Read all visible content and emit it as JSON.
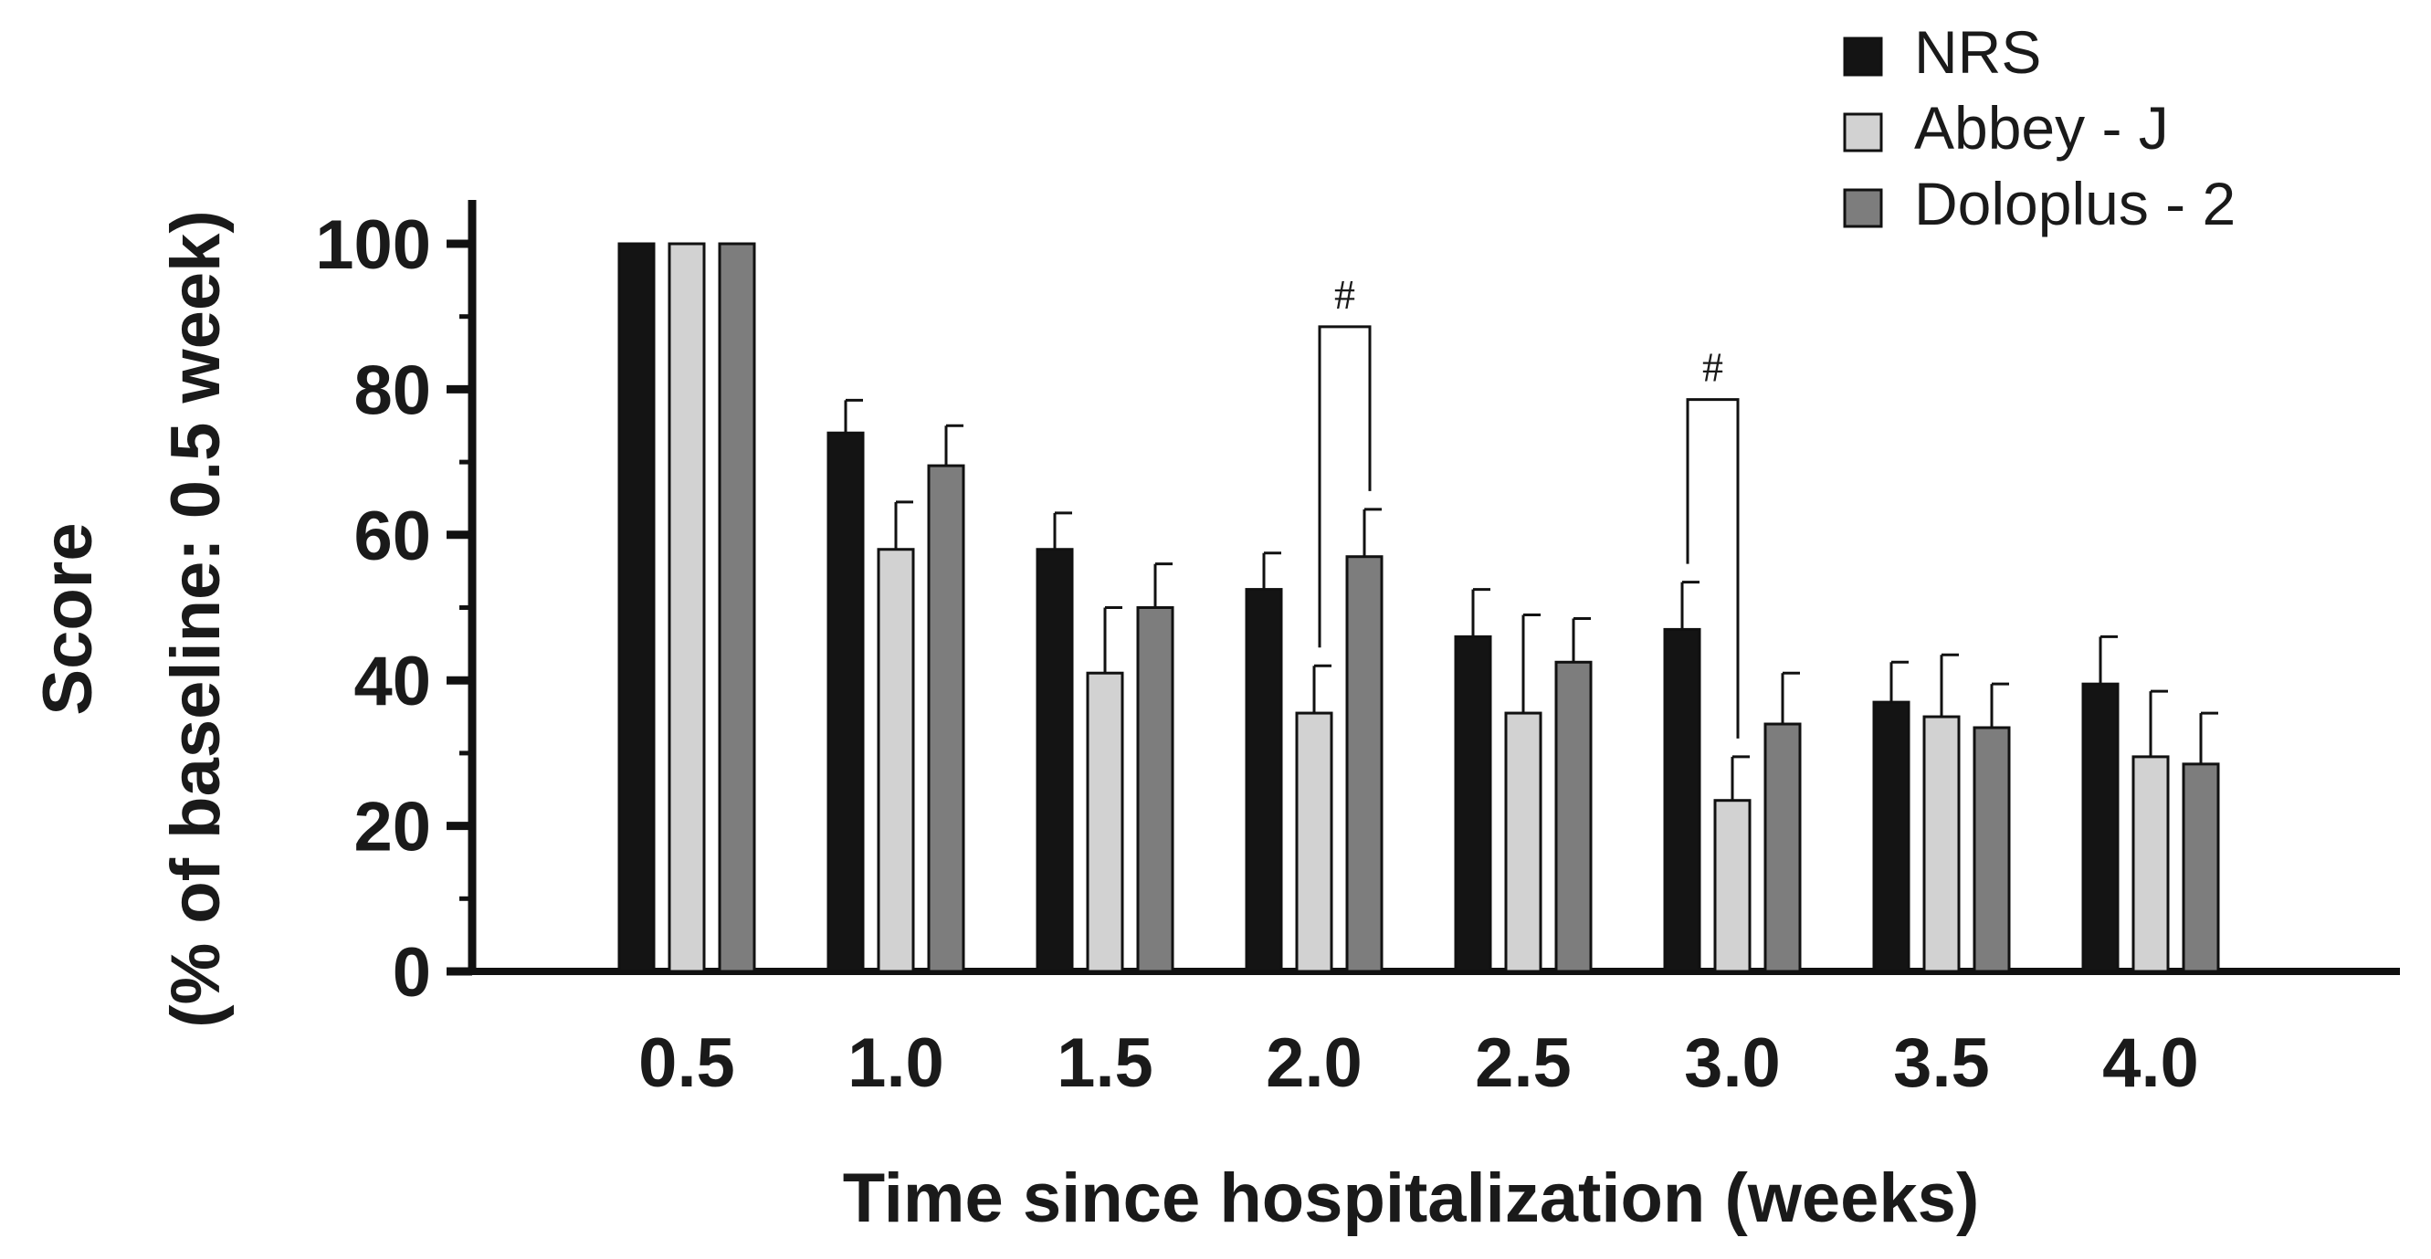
{
  "chart_data": {
    "type": "bar",
    "title": "",
    "xlabel": "Time since hospitalization (weeks)",
    "ylabel_line1": "Score",
    "ylabel_line2": "(% of baseline: 0.5 week)",
    "ylim": [
      0,
      100
    ],
    "yticks": [
      "0",
      "20",
      "40",
      "60",
      "80",
      "100"
    ],
    "categories": [
      "0.5",
      "1.0",
      "1.5",
      "2.0",
      "2.5",
      "3.0",
      "3.5",
      "4.0"
    ],
    "legend_position": "top-right",
    "series": [
      {
        "name": "NRS",
        "color": "#141414",
        "values": [
          100,
          74,
          58,
          52.5,
          46,
          47,
          37,
          39.5
        ],
        "errors": [
          0,
          4.5,
          5,
          5,
          6.5,
          6.5,
          5.5,
          6.5
        ]
      },
      {
        "name": "Abbey - J",
        "color": "#d2d2d2",
        "values": [
          100,
          58,
          41,
          35.5,
          35.5,
          23.5,
          35,
          29.5
        ],
        "errors": [
          0,
          6.5,
          9,
          6.5,
          13.5,
          6,
          8.5,
          9
        ]
      },
      {
        "name": "Doloplus - 2",
        "color": "#7d7d7d",
        "values": [
          100,
          69.5,
          50,
          57,
          42.5,
          34,
          33.5,
          28.5
        ],
        "errors": [
          0,
          5.5,
          6,
          6.5,
          6,
          7,
          6,
          7
        ]
      }
    ],
    "annotations": [
      {
        "label": "#",
        "category": "2.0",
        "series_a": "Abbey - J",
        "series_b": "Doloplus - 2"
      },
      {
        "label": "#",
        "category": "3.0",
        "series_a": "NRS",
        "series_b": "Abbey - J"
      }
    ]
  }
}
